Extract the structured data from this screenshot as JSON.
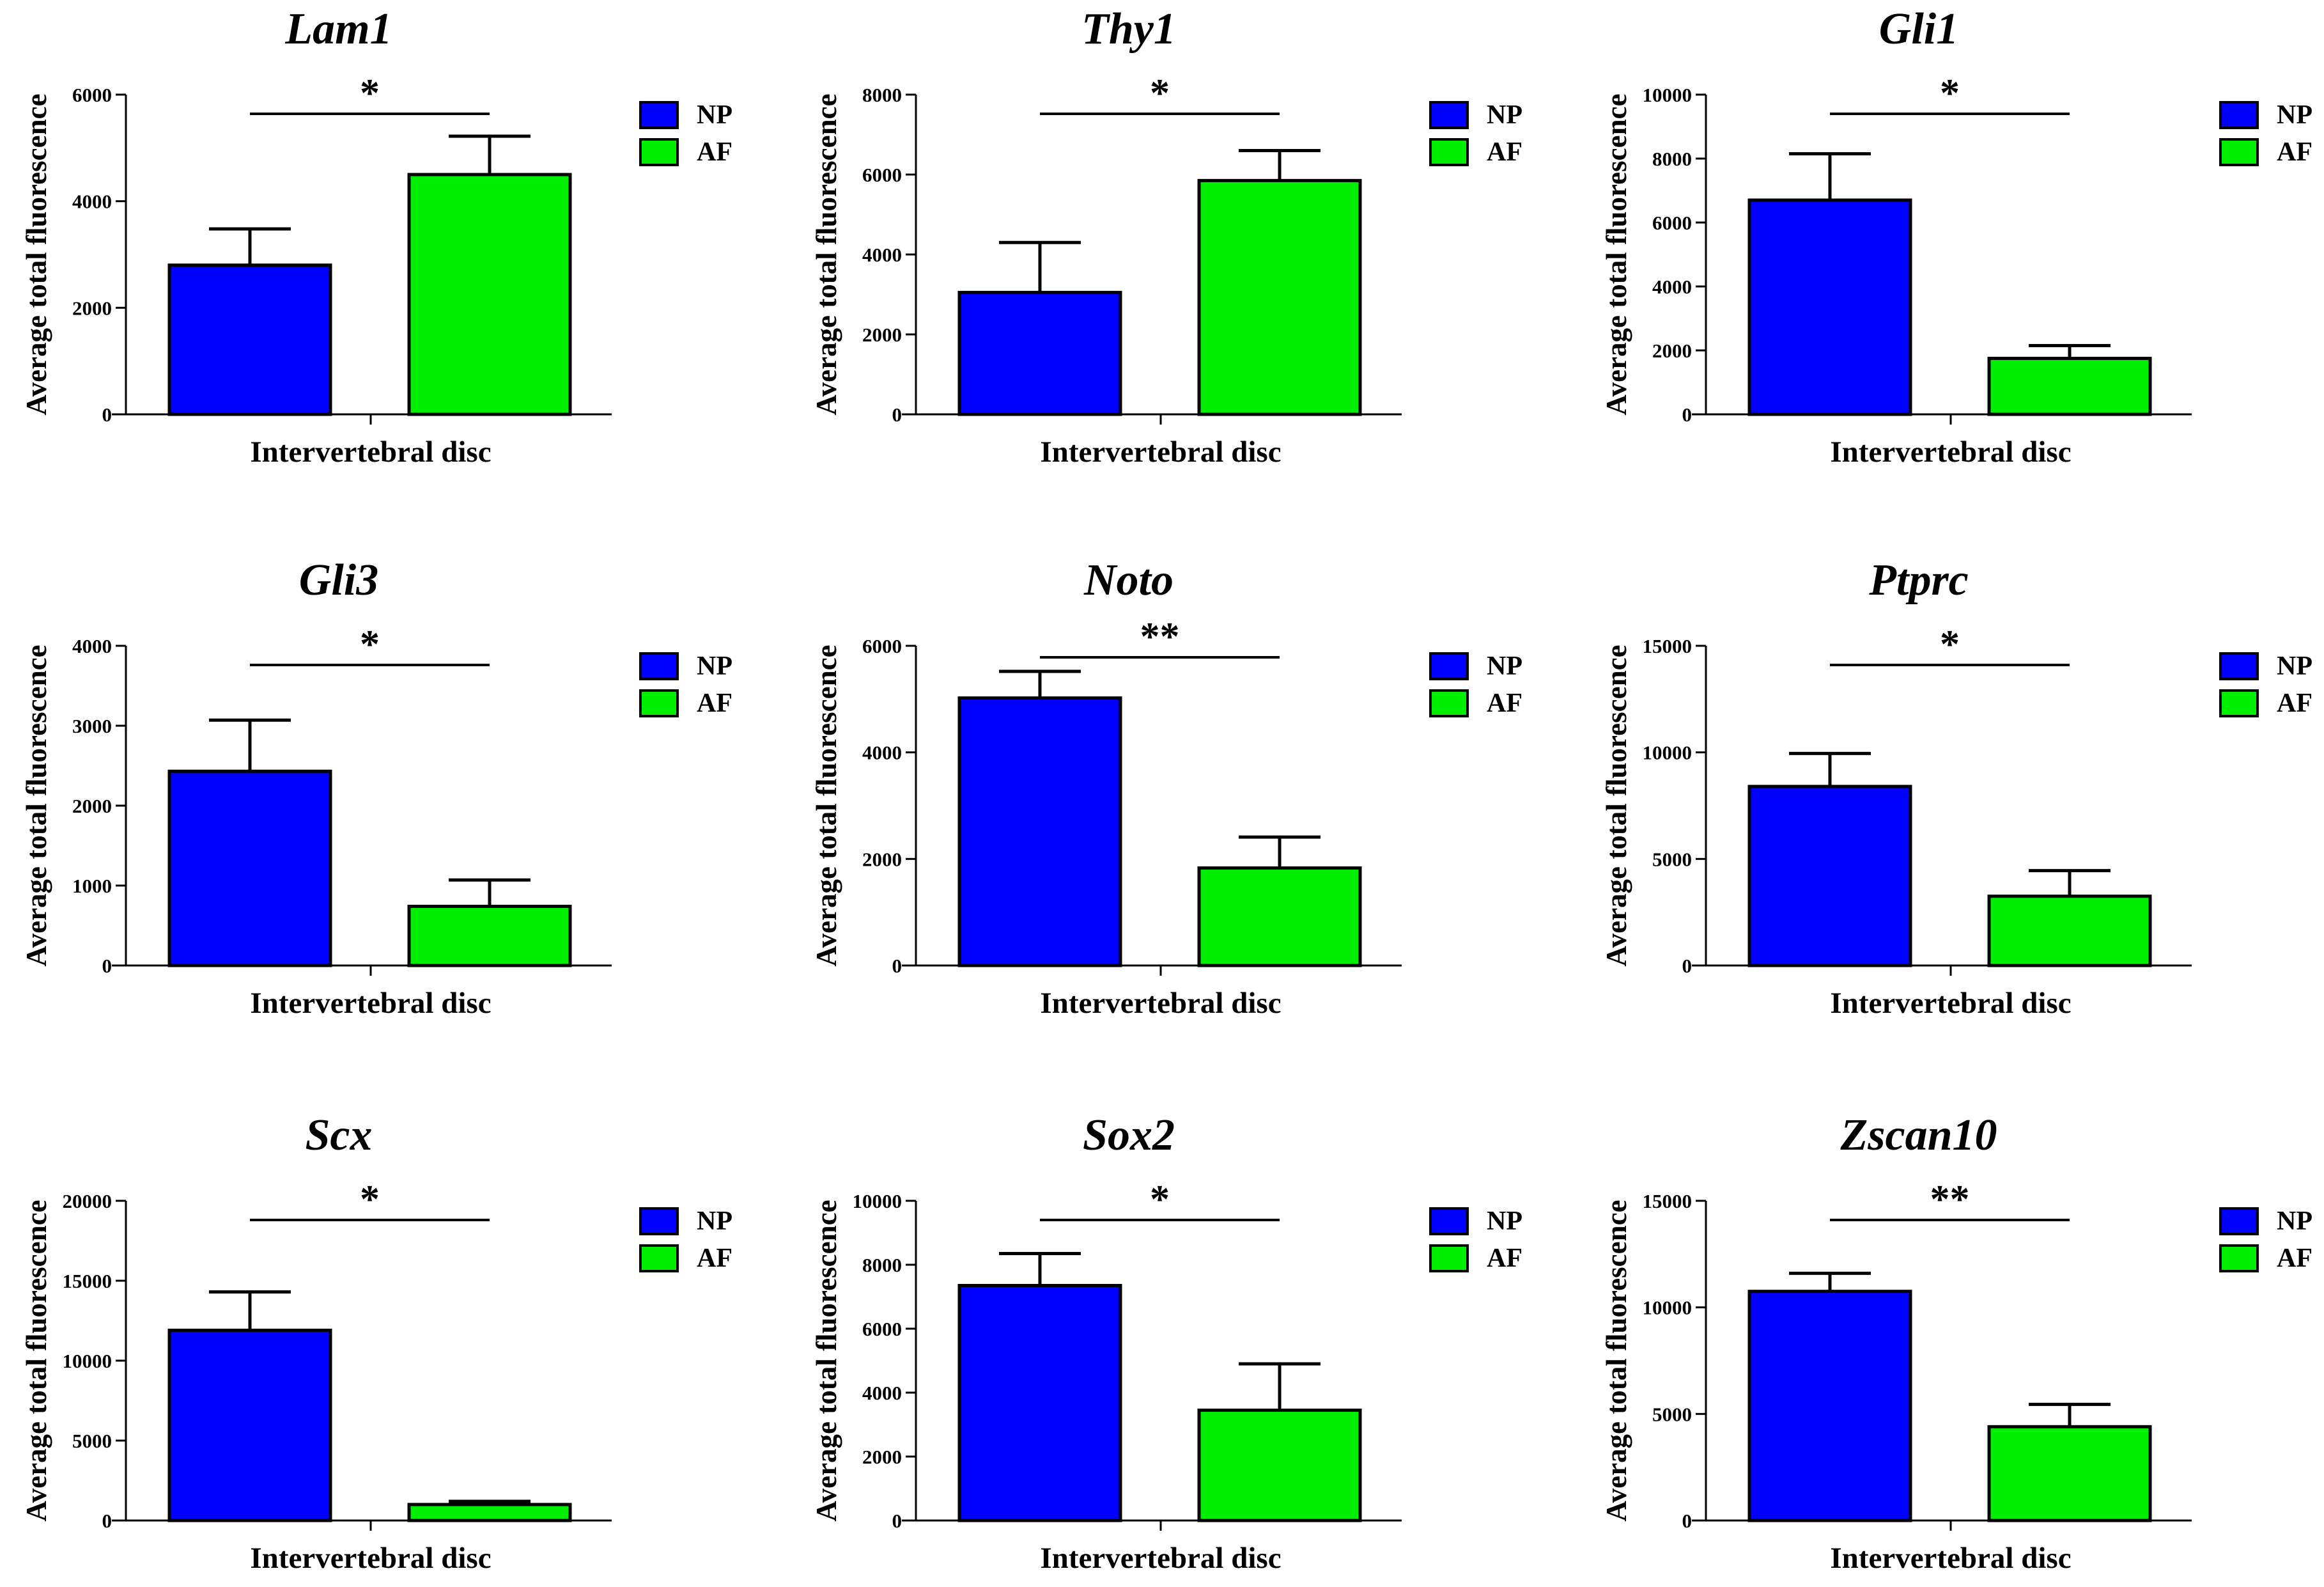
{
  "chart_data": [
    {
      "type": "bar",
      "title": "Lam1",
      "xlabel": "Intervertebral disc",
      "ylabel": "Average total fluorescence",
      "categories": [
        "NP",
        "AF"
      ],
      "values": [
        2800,
        4500
      ],
      "error": [
        680,
        720
      ],
      "ylim": [
        0,
        6000
      ],
      "yticks": [
        "0",
        "2000",
        "4000",
        "6000"
      ],
      "significance": "*",
      "legend": [
        "NP",
        "AF"
      ],
      "colors": [
        "#0000ff",
        "#00ee00"
      ]
    },
    {
      "type": "bar",
      "title": "Thy1",
      "xlabel": "Intervertebral disc",
      "ylabel": "Average total fluorescence",
      "categories": [
        "NP",
        "AF"
      ],
      "values": [
        3050,
        5850
      ],
      "error": [
        1250,
        750
      ],
      "ylim": [
        0,
        8000
      ],
      "yticks": [
        "0",
        "2000",
        "4000",
        "6000",
        "8000"
      ],
      "significance": "*",
      "legend": [
        "NP",
        "AF"
      ],
      "colors": [
        "#0000ff",
        "#00ee00"
      ]
    },
    {
      "type": "bar",
      "title": "Gli1",
      "xlabel": "Intervertebral disc",
      "ylabel": "Average total fluorescence",
      "categories": [
        "NP",
        "AF"
      ],
      "values": [
        6700,
        1750
      ],
      "error": [
        1450,
        400
      ],
      "ylim": [
        0,
        10000
      ],
      "yticks": [
        "0",
        "2000",
        "4000",
        "6000",
        "8000",
        "10000"
      ],
      "significance": "*",
      "legend": [
        "NP",
        "AF"
      ],
      "colors": [
        "#0000ff",
        "#00ee00"
      ]
    },
    {
      "type": "bar",
      "title": "Gli3",
      "xlabel": "Intervertebral disc",
      "ylabel": "Average total fluorescence",
      "categories": [
        "NP",
        "AF"
      ],
      "values": [
        2430,
        740
      ],
      "error": [
        640,
        330
      ],
      "ylim": [
        0,
        4000
      ],
      "yticks": [
        "0",
        "1000",
        "2000",
        "3000",
        "4000"
      ],
      "significance": "*",
      "legend": [
        "NP",
        "AF"
      ],
      "colors": [
        "#0000ff",
        "#00ee00"
      ]
    },
    {
      "type": "bar",
      "title": "Noto",
      "xlabel": "Intervertebral disc",
      "ylabel": "Average total fluorescence",
      "categories": [
        "NP",
        "AF"
      ],
      "values": [
        5020,
        1830
      ],
      "error": [
        500,
        580
      ],
      "ylim": [
        0,
        6000
      ],
      "yticks": [
        "0",
        "2000",
        "4000",
        "6000"
      ],
      "significance": "**",
      "legend": [
        "NP",
        "AF"
      ],
      "colors": [
        "#0000ff",
        "#00ee00"
      ]
    },
    {
      "type": "bar",
      "title": "Ptprc",
      "xlabel": "Intervertebral disc",
      "ylabel": "Average total fluorescence",
      "categories": [
        "NP",
        "AF"
      ],
      "values": [
        8400,
        3250
      ],
      "error": [
        1550,
        1200
      ],
      "ylim": [
        0,
        15000
      ],
      "yticks": [
        "0",
        "5000",
        "10000",
        "15000"
      ],
      "significance": "*",
      "legend": [
        "NP",
        "AF"
      ],
      "colors": [
        "#0000ff",
        "#00ee00"
      ]
    },
    {
      "type": "bar",
      "title": "Scx",
      "xlabel": "Intervertebral disc",
      "ylabel": "Average total fluorescence",
      "categories": [
        "NP",
        "AF"
      ],
      "values": [
        11900,
        1000
      ],
      "error": [
        2400,
        200
      ],
      "ylim": [
        0,
        20000
      ],
      "yticks": [
        "0",
        "5000",
        "10000",
        "15000",
        "20000"
      ],
      "significance": "*",
      "legend": [
        "NP",
        "AF"
      ],
      "colors": [
        "#0000ff",
        "#00ee00"
      ]
    },
    {
      "type": "bar",
      "title": "Sox2",
      "xlabel": "Intervertebral disc",
      "ylabel": "Average total fluorescence",
      "categories": [
        "NP",
        "AF"
      ],
      "values": [
        7350,
        3450
      ],
      "error": [
        1000,
        1450
      ],
      "ylim": [
        0,
        10000
      ],
      "yticks": [
        "0",
        "2000",
        "4000",
        "6000",
        "8000",
        "10000"
      ],
      "significance": "*",
      "legend": [
        "NP",
        "AF"
      ],
      "colors": [
        "#0000ff",
        "#00ee00"
      ]
    },
    {
      "type": "bar",
      "title": "Zscan10",
      "xlabel": "Intervertebral disc",
      "ylabel": "Average total fluorescence",
      "categories": [
        "NP",
        "AF"
      ],
      "values": [
        10750,
        4400
      ],
      "error": [
        850,
        1050
      ],
      "ylim": [
        0,
        15000
      ],
      "yticks": [
        "0",
        "5000",
        "10000",
        "15000"
      ],
      "significance": "**",
      "legend": [
        "NP",
        "AF"
      ],
      "colors": [
        "#0000ff",
        "#00ee00"
      ]
    }
  ]
}
